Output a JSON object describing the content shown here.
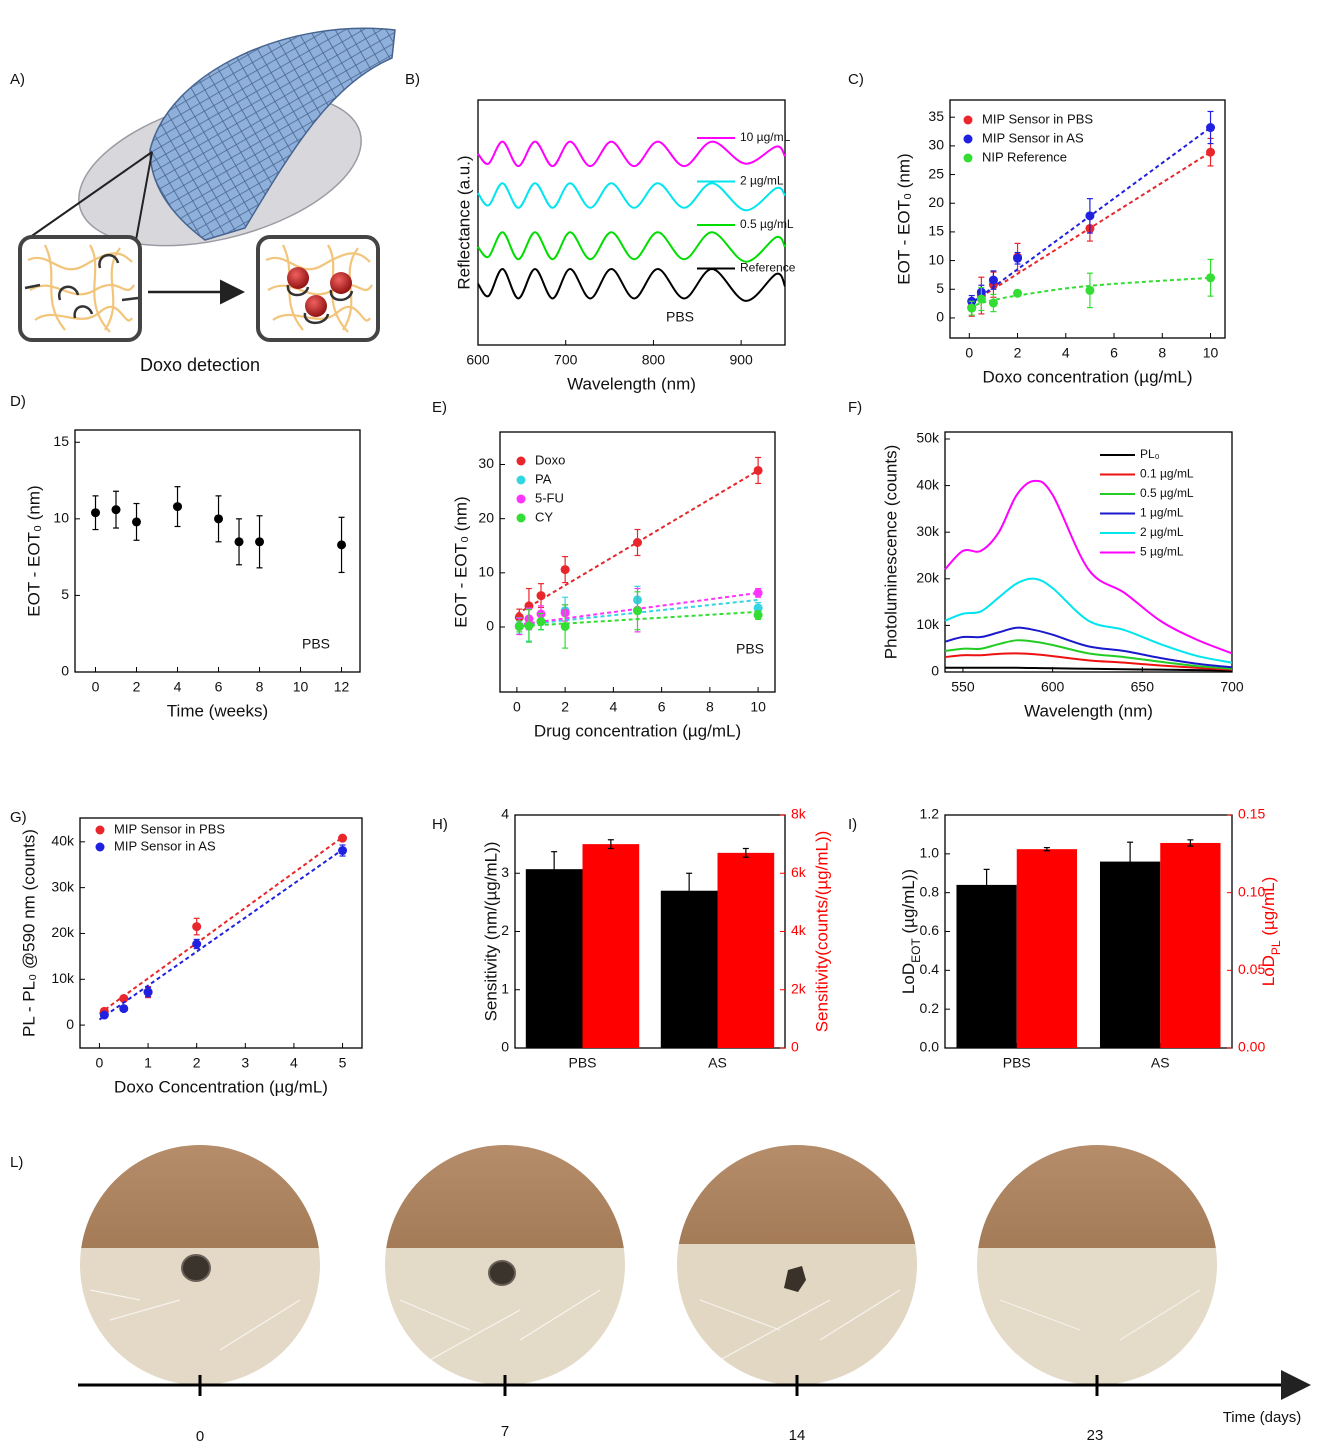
{
  "panel_a": {
    "label": "A)",
    "caption": "Doxo detection"
  },
  "chart_data": [
    {
      "type": "line",
      "label": "B)",
      "xlabel": "Wavelength (nm)",
      "ylabel": "Reflectance (a.u.)",
      "annotation": "PBS",
      "x": [
        600,
        612,
        628,
        646,
        665,
        685,
        705,
        728,
        752,
        778,
        805,
        835,
        867,
        905,
        940,
        950
      ],
      "xlim": [
        600,
        950
      ],
      "xticks": [
        600,
        700,
        800,
        900
      ],
      "ylim": [
        0,
        5
      ],
      "series": [
        {
          "name": "10 µg/mL",
          "color": "#ff00ff",
          "values": [
            3.9,
            3.7,
            4.15,
            3.65,
            4.15,
            3.65,
            4.15,
            3.65,
            4.15,
            3.65,
            4.15,
            3.65,
            4.15,
            3.7,
            4.05,
            3.85
          ]
        },
        {
          "name": "2 µg/mL",
          "color": "#00e5ee",
          "values": [
            3.1,
            2.85,
            3.3,
            2.8,
            3.3,
            2.8,
            3.3,
            2.8,
            3.3,
            2.8,
            3.3,
            2.8,
            3.3,
            2.75,
            3.2,
            3.05
          ]
        },
        {
          "name": "0.5 µg/mL",
          "color": "#00dd00",
          "values": [
            2.0,
            1.8,
            2.3,
            1.75,
            2.3,
            1.75,
            2.3,
            1.75,
            2.3,
            1.75,
            2.3,
            1.75,
            2.3,
            1.7,
            2.2,
            2.0
          ]
        },
        {
          "name": "Reference",
          "color": "#000000",
          "values": [
            1.25,
            1.0,
            1.55,
            0.95,
            1.55,
            0.95,
            1.55,
            0.95,
            1.55,
            0.95,
            1.55,
            0.95,
            1.55,
            0.9,
            1.45,
            1.2
          ]
        }
      ]
    },
    {
      "type": "scatter",
      "label": "C)",
      "xlabel": "Doxo concentration (µg/mL)",
      "ylabel": "EOT - EOT₀ (nm)",
      "x": [
        0.1,
        0.5,
        1,
        2,
        5,
        10
      ],
      "xlim": [
        -0.8,
        10.6
      ],
      "xticks": [
        0,
        2,
        4,
        6,
        8,
        10
      ],
      "ylim": [
        -3.5,
        38
      ],
      "yticks": [
        0,
        5,
        10,
        15,
        20,
        25,
        30,
        35
      ],
      "series": [
        {
          "name": "MIP Sensor in PBS",
          "color": "#e8262b",
          "values": [
            1.8,
            3.9,
            5.8,
            10.6,
            15.6,
            28.9
          ],
          "errors": [
            1.5,
            3.2,
            2.2,
            2.4,
            2.2,
            2.4
          ],
          "fit": {
            "x": [
              0,
              10
            ],
            "values": [
              2.4,
              28.9
            ]
          }
        },
        {
          "name": "MIP Sensor in AS",
          "color": "#2020e0",
          "values": [
            2.9,
            4.5,
            6.6,
            10.4,
            17.8,
            33.2
          ],
          "errors": [
            1.0,
            1.2,
            1.6,
            1.0,
            3.0,
            2.8
          ],
          "fit": {
            "x": [
              0,
              10
            ],
            "values": [
              2.3,
              33.2
            ]
          }
        },
        {
          "name": "NIP Reference",
          "color": "#33dd33",
          "values": [
            1.7,
            3.3,
            2.6,
            4.3,
            4.8,
            7.0
          ],
          "errors": [
            1.2,
            2.0,
            1.5,
            0.5,
            3.0,
            3.2
          ],
          "fit": {
            "x": [
              0,
              0.5,
              1,
              2,
              5,
              10
            ],
            "values": [
              1.8,
              2.6,
              3.1,
              3.9,
              5.6,
              7.0
            ]
          }
        }
      ]
    },
    {
      "type": "scatter",
      "label": "D)",
      "xlabel": "Time (weeks)",
      "ylabel": "EOT - EOT₀ (nm)",
      "annotation": "PBS",
      "x": [
        0,
        1,
        2,
        4,
        6,
        7,
        8,
        12
      ],
      "xlim": [
        -1,
        12.9
      ],
      "xticks": [
        0,
        2,
        4,
        6,
        8,
        10,
        12
      ],
      "ylim": [
        0,
        15.8
      ],
      "yticks": [
        0,
        5,
        10,
        15
      ],
      "series": [
        {
          "color": "#000000",
          "values": [
            10.4,
            10.6,
            9.8,
            10.8,
            10.0,
            8.5,
            8.5,
            8.3
          ],
          "errors": [
            1.1,
            1.2,
            1.2,
            1.3,
            1.5,
            1.5,
            1.7,
            1.8
          ]
        }
      ]
    },
    {
      "type": "scatter",
      "label": "E)",
      "xlabel": "Drug concentration (µg/mL)",
      "ylabel": "EOT - EOT₀ (nm)",
      "annotation": "PBS",
      "x": [
        0.1,
        0.5,
        1,
        2,
        5,
        10
      ],
      "xlim": [
        -0.7,
        10.7
      ],
      "xticks": [
        0,
        2,
        4,
        6,
        8,
        10
      ],
      "ylim": [
        -12,
        36
      ],
      "yticks": [
        0,
        10,
        20,
        30
      ],
      "series": [
        {
          "name": "Doxo",
          "color": "#e8262b",
          "values": [
            1.8,
            3.9,
            5.8,
            10.6,
            15.6,
            28.9
          ],
          "errors": [
            1.5,
            3.2,
            2.2,
            2.4,
            2.4,
            2.4
          ],
          "fit": {
            "x": [
              0,
              10
            ],
            "values": [
              2.4,
              28.9
            ]
          }
        },
        {
          "name": "PA",
          "color": "#33d6e0",
          "values": [
            0.2,
            0.4,
            1.0,
            3.0,
            5.0,
            3.5
          ],
          "errors": [
            1.5,
            3.0,
            1.5,
            2.5,
            2.5,
            1.0
          ],
          "fit": {
            "x": [
              0,
              10
            ],
            "values": [
              0.3,
              5.0
            ]
          }
        },
        {
          "name": "5-FU",
          "color": "#ff33ff",
          "values": [
            0.1,
            1.5,
            2.4,
            2.6,
            3.1,
            6.3
          ],
          "errors": [
            1.5,
            2.0,
            1.5,
            1.5,
            4.0,
            0.8
          ],
          "fit": {
            "x": [
              0,
              10
            ],
            "values": [
              0.4,
              6.3
            ]
          }
        },
        {
          "name": "CY",
          "color": "#33dd33",
          "values": [
            0.1,
            0.2,
            1.0,
            0.1,
            3.0,
            2.2
          ],
          "errors": [
            1.0,
            3.0,
            1.5,
            4.0,
            3.5,
            0.8
          ],
          "fit": {
            "x": [
              0,
              10
            ],
            "values": [
              0.1,
              2.8
            ]
          }
        }
      ]
    },
    {
      "type": "line",
      "label": "F)",
      "xlabel": "Wavelength (nm)",
      "ylabel": "Photoluminescence (counts)",
      "x": [
        540,
        550,
        560,
        570,
        580,
        590,
        600,
        620,
        640,
        660,
        680,
        700
      ],
      "xlim": [
        540,
        700
      ],
      "xticks": [
        550,
        600,
        650,
        700
      ],
      "ylim": [
        0,
        51500
      ],
      "yticks": [
        0,
        {
          "value": 10000,
          "label": "10k"
        },
        {
          "value": 20000,
          "label": "20k"
        },
        {
          "value": 30000,
          "label": "30k"
        },
        {
          "value": 40000,
          "label": "40k"
        },
        {
          "value": 50000,
          "label": "50k"
        }
      ],
      "series": [
        {
          "name": "PL₀",
          "color": "#000000",
          "values": [
            900,
            900,
            900,
            900,
            900,
            850,
            800,
            700,
            600,
            500,
            400,
            300
          ]
        },
        {
          "name": "0.1 µg/mL",
          "color": "#ee1111",
          "values": [
            3200,
            3600,
            3600,
            3900,
            4000,
            3800,
            3400,
            2500,
            2000,
            1400,
            900,
            500
          ]
        },
        {
          "name": "0.5 µg/mL",
          "color": "#22cc22",
          "values": [
            4500,
            5000,
            5000,
            6000,
            6800,
            6500,
            5800,
            4000,
            3200,
            2200,
            1300,
            700
          ]
        },
        {
          "name": "1 µg/mL",
          "color": "#1a1acc",
          "values": [
            6500,
            7500,
            7500,
            8500,
            9500,
            9000,
            8000,
            5500,
            4500,
            3000,
            1800,
            1000
          ]
        },
        {
          "name": "2 µg/mL",
          "color": "#00e5ee",
          "values": [
            11000,
            12500,
            13000,
            16000,
            19000,
            20000,
            18000,
            11000,
            9000,
            6000,
            3500,
            2000
          ]
        },
        {
          "name": "5 µg/mL",
          "color": "#ff00ff",
          "values": [
            22000,
            26000,
            26000,
            30000,
            38000,
            41000,
            38000,
            22000,
            17000,
            11000,
            7000,
            4000
          ]
        }
      ]
    },
    {
      "type": "scatter",
      "label": "G)",
      "xlabel": "Doxo Concentration (µg/mL)",
      "ylabel": "PL - PL₀ @590 nm (counts)",
      "x": [
        0.1,
        0.5,
        1,
        2,
        5
      ],
      "xlim": [
        -0.4,
        5.4
      ],
      "xticks": [
        0,
        1,
        2,
        3,
        4,
        5
      ],
      "ylim": [
        -5000,
        45200
      ],
      "yticks": [
        0,
        {
          "value": 10000,
          "label": "10k"
        },
        {
          "value": 20000,
          "label": "20k"
        },
        {
          "value": 30000,
          "label": "30k"
        },
        {
          "value": 40000,
          "label": "40k"
        }
      ],
      "series": [
        {
          "name": "MIP Sensor in PBS",
          "color": "#e8262b",
          "values": [
            3000,
            5800,
            7200,
            21500,
            40800
          ],
          "errors": [
            500,
            500,
            1200,
            1800,
            600
          ],
          "fit": {
            "x": [
              0,
              5
            ],
            "values": [
              2500,
              41000
            ]
          }
        },
        {
          "name": "MIP Sensor in AS",
          "color": "#2020e0",
          "values": [
            2200,
            3600,
            7200,
            17700,
            38100
          ],
          "errors": [
            400,
            500,
            1000,
            1000,
            1200
          ],
          "fit": {
            "x": [
              0,
              5
            ],
            "values": [
              1200,
              38300
            ]
          }
        }
      ]
    },
    {
      "type": "bar",
      "label": "H)",
      "ylabel": "Sensitivity (nm/(µg/mL))",
      "y2label": "Sensitivity(counts/(µg/mL))",
      "categories": [
        "PBS",
        "AS"
      ],
      "ylim": [
        0,
        4
      ],
      "yticks": [
        0,
        1,
        2,
        3,
        4
      ],
      "y2lim": [
        0,
        8000
      ],
      "y2ticks": [
        0,
        {
          "value": 2000,
          "label": "2k"
        },
        {
          "value": 4000,
          "label": "4k"
        },
        {
          "value": 6000,
          "label": "6k"
        },
        {
          "value": 8000,
          "label": "8k"
        }
      ],
      "series": [
        {
          "color": "#000000",
          "values": [
            3.07,
            2.7
          ],
          "errors": [
            0.3,
            0.3
          ]
        },
        {
          "color": "#ff0000",
          "axis": "y2",
          "values": [
            7000,
            6700
          ],
          "errors": [
            150,
            150
          ]
        }
      ]
    },
    {
      "type": "bar",
      "label": "I)",
      "ylabel": [
        "LoD",
        "EOT",
        " (µg/mL))"
      ],
      "y2label": [
        "LoD",
        "PL",
        " (µg/mL)"
      ],
      "categories": [
        "PBS",
        "AS"
      ],
      "ylim": [
        0,
        1.2
      ],
      "yticks": [
        {
          "value": 0,
          "label": "0.0"
        },
        0.2,
        0.4,
        0.6,
        0.8,
        {
          "value": 1,
          "label": "1.0"
        },
        1.2
      ],
      "y2lim": [
        0,
        0.15
      ],
      "y2ticks": [
        {
          "value": 0,
          "label": "0.00"
        },
        0.05,
        {
          "value": 0.1,
          "label": "0.10"
        },
        0.15
      ],
      "series": [
        {
          "color": "#000000",
          "values": [
            0.84,
            0.96
          ],
          "errors": [
            0.08,
            0.1
          ]
        },
        {
          "color": "#ff0000",
          "axis": "y2",
          "values": [
            0.128,
            0.132
          ],
          "errors": [
            0.001,
            0.002
          ]
        }
      ]
    }
  ],
  "panel_l": {
    "label": "L)",
    "timeline": {
      "ticks": [
        "0",
        "7",
        "14",
        "23"
      ],
      "axis_label": "Time (days)"
    }
  }
}
